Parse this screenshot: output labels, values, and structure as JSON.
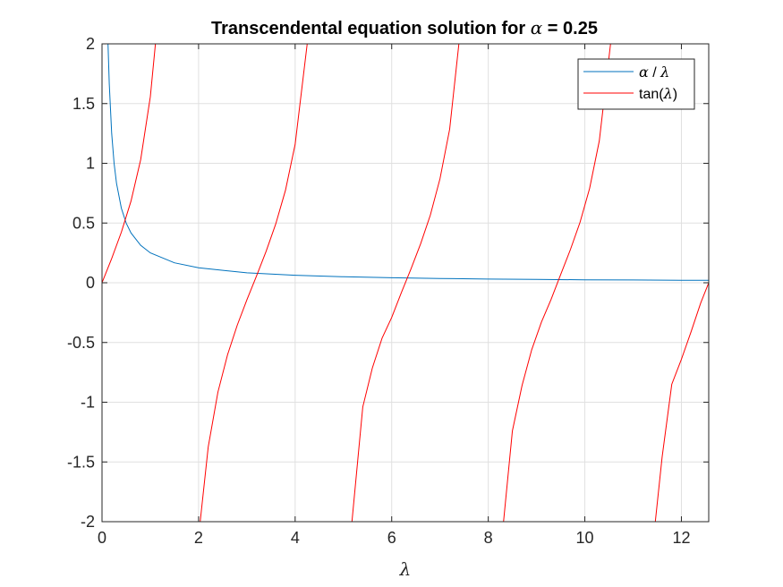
{
  "chart_data": {
    "type": "line",
    "title_parts": [
      "Transcendental equation solution for ",
      "α",
      " = 0.25"
    ],
    "xlabel": "λ",
    "ylabel": "",
    "xlim": [
      0,
      12.566
    ],
    "ylim": [
      -2,
      2
    ],
    "x_ticks": [
      0,
      2,
      4,
      6,
      8,
      10,
      12
    ],
    "x_tick_labels": [
      "0",
      "2",
      "4",
      "6",
      "8",
      "10",
      "12"
    ],
    "y_ticks": [
      2,
      1.5,
      1,
      0.5,
      0,
      -0.5,
      -1,
      -1.5,
      -2
    ],
    "y_tick_labels": [
      "2",
      "1.5",
      "1",
      "0.5",
      "0",
      "-0.5",
      "-1",
      "-1.5",
      "-2"
    ],
    "grid": true,
    "legend_position": "top-right",
    "alpha": 0.25,
    "series": [
      {
        "name": "α / λ",
        "color": "#0072BD",
        "x": [
          0.125,
          0.15,
          0.2,
          0.25,
          0.3,
          0.4,
          0.5,
          0.6,
          0.8,
          1.0,
          1.5,
          2.0,
          3.0,
          4.0,
          5.0,
          6.0,
          7.0,
          8.0,
          9.0,
          10.0,
          11.0,
          12.0,
          12.566
        ],
        "y": [
          2.0,
          1.667,
          1.25,
          1.0,
          0.833,
          0.625,
          0.5,
          0.417,
          0.313,
          0.25,
          0.167,
          0.125,
          0.083,
          0.063,
          0.05,
          0.042,
          0.036,
          0.031,
          0.028,
          0.025,
          0.023,
          0.021,
          0.02
        ]
      },
      {
        "name": "tan(λ)",
        "color": "#FF0000",
        "x": [
          0,
          0.2,
          0.4,
          0.6,
          0.8,
          1.0,
          1.107,
          2.034,
          2.2,
          2.4,
          2.6,
          2.8,
          3.0,
          3.2,
          3.4,
          3.6,
          3.8,
          4.0,
          4.249,
          5.176,
          5.4,
          5.6,
          5.8,
          6.0,
          6.2,
          6.4,
          6.6,
          6.8,
          7.0,
          7.2,
          7.391,
          8.317,
          8.5,
          8.7,
          8.9,
          9.1,
          9.3,
          9.5,
          9.7,
          9.9,
          10.1,
          10.3,
          10.532,
          11.459,
          11.6,
          11.8,
          12.0,
          12.2,
          12.4,
          12.566
        ],
        "y": [
          0,
          0.203,
          0.423,
          0.684,
          1.03,
          1.557,
          2.0,
          -2.0,
          -1.374,
          -0.916,
          -0.602,
          -0.356,
          -0.143,
          0.058,
          0.264,
          0.494,
          0.774,
          1.158,
          2.0,
          -2.0,
          -1.04,
          -0.713,
          -0.465,
          -0.291,
          -0.083,
          0.117,
          0.327,
          0.566,
          0.871,
          1.286,
          2.0,
          -2.0,
          -1.24,
          -0.86,
          -0.56,
          -0.33,
          -0.14,
          0.07,
          0.277,
          0.506,
          0.79,
          1.187,
          2.0,
          -2.0,
          -1.46,
          -0.85,
          -0.64,
          -0.41,
          -0.17,
          0.0
        ]
      }
    ]
  },
  "legend": {
    "entries": [
      {
        "parts": [
          "α",
          " / ",
          "λ"
        ]
      },
      {
        "parts": [
          "tan(",
          "λ",
          ")"
        ]
      }
    ]
  }
}
